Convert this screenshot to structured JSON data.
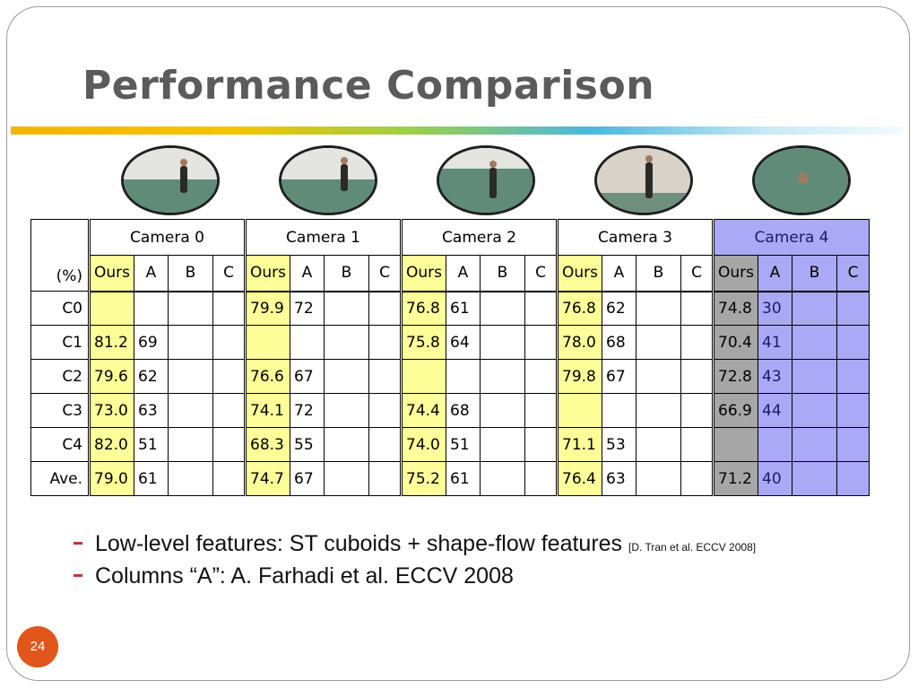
{
  "slide": {
    "title": "Performance Comparison",
    "page_number": "24"
  },
  "cameras": [
    {
      "name": "Camera 0"
    },
    {
      "name": "Camera 1"
    },
    {
      "name": "Camera 2"
    },
    {
      "name": "Camera 3"
    },
    {
      "name": "Camera 4"
    }
  ],
  "table": {
    "unit_label": "(%)",
    "subheaders": [
      "Ours",
      "A",
      "B",
      "C"
    ],
    "rows": [
      {
        "label": "C0",
        "cells": [
          "",
          "",
          "",
          "",
          "79.9",
          "72",
          "",
          "",
          "76.8",
          "61",
          "",
          "",
          "76.8",
          "62",
          "",
          "",
          "74.8",
          "30",
          "",
          ""
        ]
      },
      {
        "label": "C1",
        "cells": [
          "81.2",
          "69",
          "",
          "",
          "",
          "",
          "",
          "",
          "75.8",
          "64",
          "",
          "",
          "78.0",
          "68",
          "",
          "",
          "70.4",
          "41",
          "",
          ""
        ]
      },
      {
        "label": "C2",
        "cells": [
          "79.6",
          "62",
          "",
          "",
          "76.6",
          "67",
          "",
          "",
          "",
          "",
          "",
          "",
          "79.8",
          "67",
          "",
          "",
          "72.8",
          "43",
          "",
          ""
        ]
      },
      {
        "label": "C3",
        "cells": [
          "73.0",
          "63",
          "",
          "",
          "74.1",
          "72",
          "",
          "",
          "74.4",
          "68",
          "",
          "",
          "",
          "",
          "",
          "",
          "66.9",
          "44",
          "",
          ""
        ]
      },
      {
        "label": "C4",
        "cells": [
          "82.0",
          "51",
          "",
          "",
          "68.3",
          "55",
          "",
          "",
          "74.0",
          "51",
          "",
          "",
          "71.1",
          "53",
          "",
          "",
          "",
          "",
          "",
          ""
        ]
      },
      {
        "label": "Ave.",
        "cells": [
          "79.0",
          "61",
          "",
          "",
          "74.7",
          "67",
          "",
          "",
          "75.2",
          "61",
          "",
          "",
          "76.4",
          "63",
          "",
          "",
          "71.2",
          "40",
          "",
          ""
        ]
      }
    ]
  },
  "bullets": [
    {
      "text": "Low-level features: ST cuboids + shape-flow features",
      "citation": "[D. Tran et al. ECCV 2008]"
    },
    {
      "text": "Columns “A”: A. Farhadi et al. ECCV 2008",
      "citation": ""
    }
  ],
  "colors": {
    "title": "#5b5b5b",
    "ours_highlight": "#ffff99",
    "camera4_highlight": "#a9a9f5",
    "camera4_ours": "#a6a6a6",
    "bullet_dash": "#c0392b",
    "page_badge": "#e0561b"
  }
}
